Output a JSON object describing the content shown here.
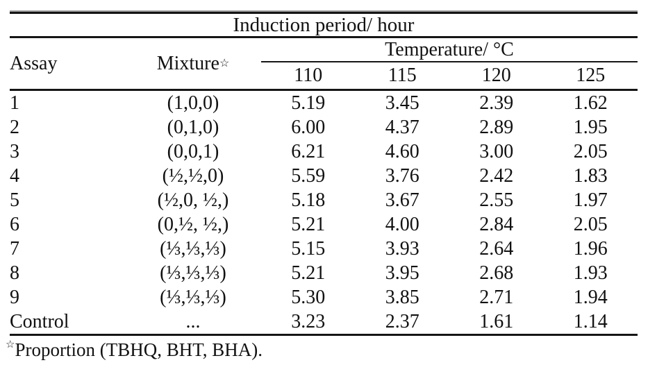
{
  "table": {
    "title": "Induction period/ hour",
    "star_marker": "☆",
    "headers": {
      "assay": "Assay",
      "mixture": "Mixture",
      "temperature_group": "Temperature/ °C",
      "temps": [
        "110",
        "115",
        "120",
        "125"
      ]
    },
    "rows": [
      {
        "assay": "1",
        "mixture": "(1,0,0)",
        "v": [
          "5.19",
          "3.45",
          "2.39",
          "1.62"
        ]
      },
      {
        "assay": "2",
        "mixture": "(0,1,0)",
        "v": [
          "6.00",
          "4.37",
          "2.89",
          "1.95"
        ]
      },
      {
        "assay": "3",
        "mixture": "(0,0,1)",
        "v": [
          "6.21",
          "4.60",
          "3.00",
          "2.05"
        ]
      },
      {
        "assay": "4",
        "mixture": "(½,½,0)",
        "v": [
          "5.59",
          "3.76",
          "2.42",
          "1.83"
        ]
      },
      {
        "assay": "5",
        "mixture": "(½,0, ½,)",
        "v": [
          "5.18",
          "3.67",
          "2.55",
          "1.97"
        ]
      },
      {
        "assay": "6",
        "mixture": "(0,½, ½,)",
        "v": [
          "5.21",
          "4.00",
          "2.84",
          "2.05"
        ]
      },
      {
        "assay": "7",
        "mixture": "(⅓,⅓,⅓)",
        "v": [
          "5.15",
          "3.93",
          "2.64",
          "1.96"
        ]
      },
      {
        "assay": "8",
        "mixture": "(⅓,⅓,⅓)",
        "v": [
          "5.21",
          "3.95",
          "2.68",
          "1.93"
        ]
      },
      {
        "assay": "9",
        "mixture": "(⅓,⅓,⅓)",
        "v": [
          "5.30",
          "3.85",
          "2.71",
          "1.94"
        ]
      },
      {
        "assay": "Control",
        "mixture": "...",
        "v": [
          "3.23",
          "2.37",
          "1.61",
          "1.14"
        ]
      }
    ],
    "footnote": {
      "star": "☆",
      "text": "Proportion (TBHQ, BHT, BHA)."
    }
  }
}
